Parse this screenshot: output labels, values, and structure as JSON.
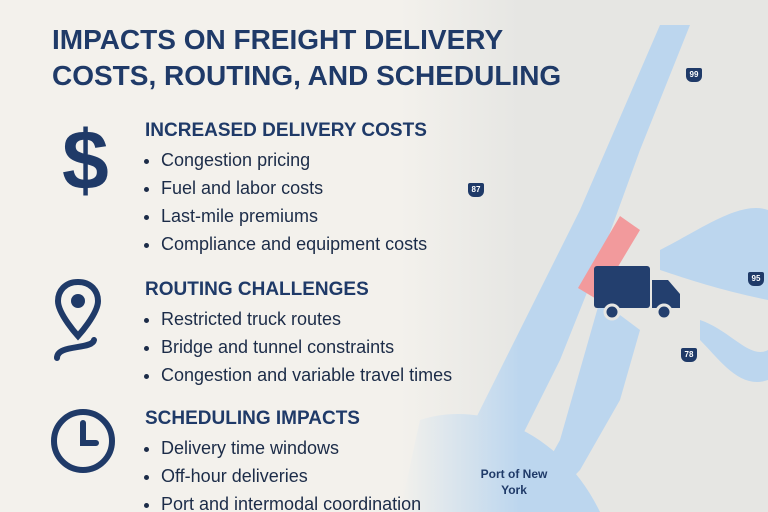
{
  "title": "IMPACTS ON FREIGHT DELIVERY COSTS, ROUTING, AND SCHEDULING",
  "sections": [
    {
      "icon": "$",
      "heading": "INCREASED DELIVERY COSTS",
      "items": [
        "Congestion pricing",
        "Fuel and labor costs",
        "Last-mile premiums",
        "Compliance and equipment costs"
      ]
    },
    {
      "heading": "ROUTING CHALLENGES",
      "items": [
        "Restricted truck routes",
        "Bridge and tunnel constraints",
        "Congestion and variable travel times"
      ]
    },
    {
      "heading": "SCHEDULING IMPACTS",
      "items": [
        "Delivery time windows",
        "Off-hour deliveries",
        "Port and intermodal coordination"
      ]
    }
  ],
  "map": {
    "highways": [
      "99",
      "87",
      "95",
      "78"
    ],
    "place_label": "Port of New York"
  }
}
